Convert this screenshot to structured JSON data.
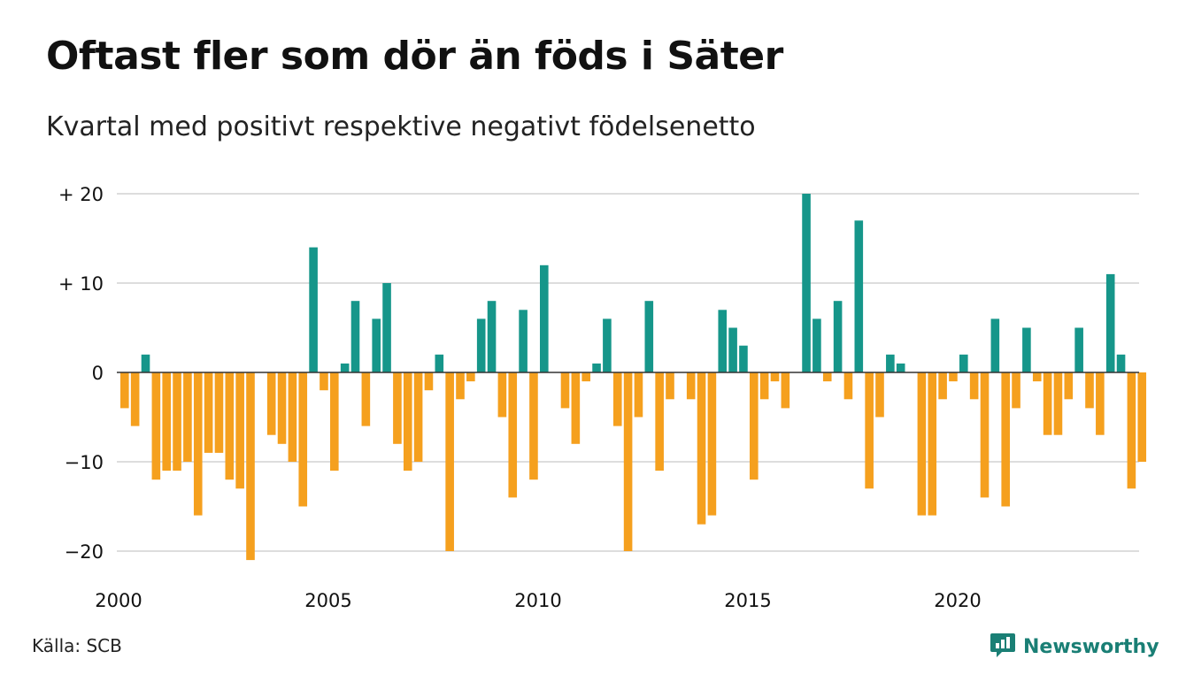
{
  "title": "Oftast fler som dör än föds i Säter",
  "subtitle": "Kvartal med positivt respektive negativt födelsenetto",
  "source": "Källa: SCB",
  "brand": "Newsworthy",
  "colors": {
    "positive": "#16968a",
    "negative": "#f5a01e",
    "grid": "#dddddd",
    "zero": "#333333",
    "brand": "#1a7f75"
  },
  "chart_data": {
    "type": "bar",
    "title": "Oftast fler som dör än föds i Säter",
    "subtitle": "Kvartal med positivt respektive negativt födelsenetto",
    "xlabel": "",
    "ylabel": "",
    "ylim": [
      -22,
      20
    ],
    "yticks": [
      {
        "value": 20,
        "label": "+ 20"
      },
      {
        "value": 10,
        "label": "+ 10"
      },
      {
        "value": 0,
        "label": "0"
      },
      {
        "value": -10,
        "label": "−10"
      },
      {
        "value": -20,
        "label": "−20"
      }
    ],
    "xticks": [
      "2000",
      "2005",
      "2010",
      "2015",
      "2020"
    ],
    "start_year": 2000,
    "quarters_per_year": 4,
    "grid": true,
    "values": [
      -4,
      -6,
      2,
      -12,
      -11,
      -11,
      -10,
      -16,
      -9,
      -9,
      -12,
      -13,
      -21,
      0,
      -7,
      -8,
      -10,
      -15,
      14,
      -2,
      -11,
      1,
      8,
      -6,
      6,
      10,
      -8,
      -11,
      -10,
      -2,
      2,
      -20,
      -3,
      -1,
      6,
      8,
      -5,
      -14,
      7,
      -12,
      12,
      0,
      -4,
      -8,
      -1,
      1,
      6,
      -6,
      -20,
      -5,
      8,
      -11,
      -3,
      0,
      -3,
      -17,
      -16,
      7,
      5,
      3,
      -12,
      -3,
      -1,
      -4,
      0,
      20,
      6,
      -1,
      8,
      -3,
      17,
      -13,
      -5,
      2,
      1,
      0,
      -16,
      -16,
      -3,
      -1,
      2,
      -3,
      -14,
      6,
      -15,
      -4,
      5,
      -1,
      -7,
      -7,
      -3,
      5,
      -4,
      -7,
      11,
      2,
      -13,
      -10
    ]
  }
}
